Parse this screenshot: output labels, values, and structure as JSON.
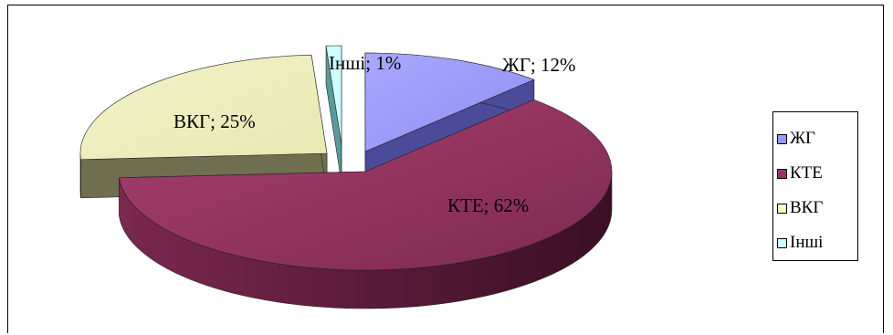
{
  "chart_data": {
    "type": "pie",
    "style": "3d-exploded",
    "categories": [
      "ЖГ",
      "КТЕ",
      "ВКГ",
      "Інші"
    ],
    "values": [
      12,
      62,
      25,
      1
    ],
    "unit": "%",
    "data_labels": [
      "ЖГ; 12%",
      "КТЕ; 62%",
      "ВКГ; 25%",
      "Інші; 1%"
    ],
    "colors": {
      "ЖГ": "#9999ff",
      "КТЕ": "#993366",
      "ВКГ": "#ffffcc",
      "Інші": "#ccffff"
    },
    "title": "",
    "legend": {
      "position": "right",
      "entries": [
        "ЖГ",
        "КТЕ",
        "ВКГ",
        "Інші"
      ]
    }
  }
}
